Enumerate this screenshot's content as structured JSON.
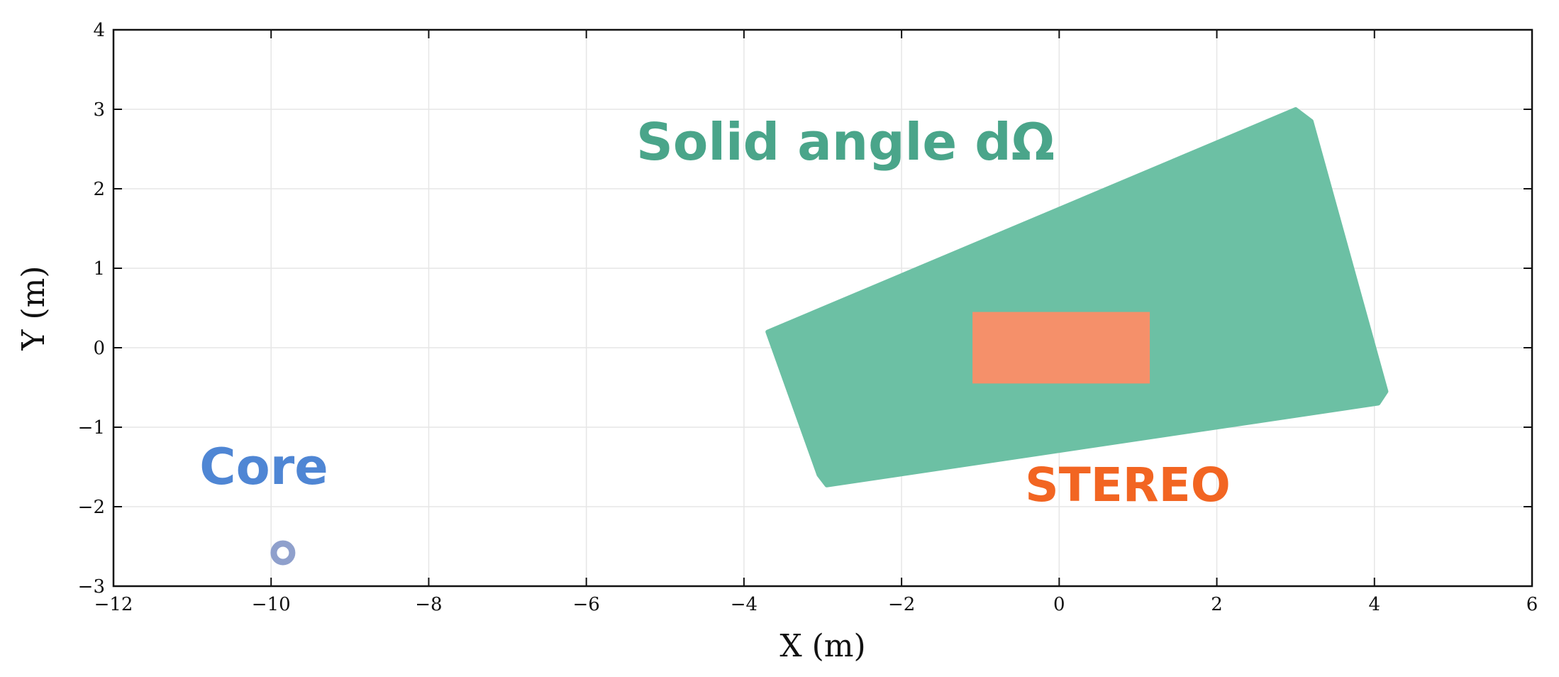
{
  "chart_data": {
    "type": "scatter",
    "title": "",
    "xlabel": "X (m)",
    "ylabel": "Y (m)",
    "xlim": [
      -12,
      6
    ],
    "ylim": [
      -3,
      4
    ],
    "xticks": [
      -12,
      -10,
      -8,
      -6,
      -4,
      -2,
      0,
      2,
      4,
      6
    ],
    "yticks": [
      -3,
      -2,
      -1,
      0,
      1,
      2,
      3,
      4
    ],
    "xtick_labels": [
      "−12",
      "−10",
      "−8",
      "−6",
      "−4",
      "−2",
      "0",
      "2",
      "4",
      "6"
    ],
    "ytick_labels": [
      "−3",
      "−2",
      "−1",
      "0",
      "1",
      "2",
      "3",
      "4"
    ],
    "grid": true,
    "regions": [
      {
        "label": "Solid angle dΩ",
        "color": "#6cc0a4",
        "label_color": "#4aa58a",
        "polygon": [
          [
            -3.7,
            0.2
          ],
          [
            3.0,
            3.0
          ],
          [
            3.2,
            2.85
          ],
          [
            4.15,
            -0.55
          ],
          [
            4.05,
            -0.7
          ],
          [
            -2.95,
            -1.73
          ],
          [
            -3.05,
            -1.6
          ]
        ]
      },
      {
        "label": "STEREO",
        "color": "#f5906a",
        "label_color": "#f26522",
        "x": [
          -1.1,
          1.15
        ],
        "y": [
          -0.45,
          0.45
        ]
      }
    ],
    "points": [
      {
        "label": "Core",
        "x": -9.85,
        "y": -2.58,
        "color": "#8fa0cc",
        "label_color": "#4f86d4"
      }
    ]
  }
}
